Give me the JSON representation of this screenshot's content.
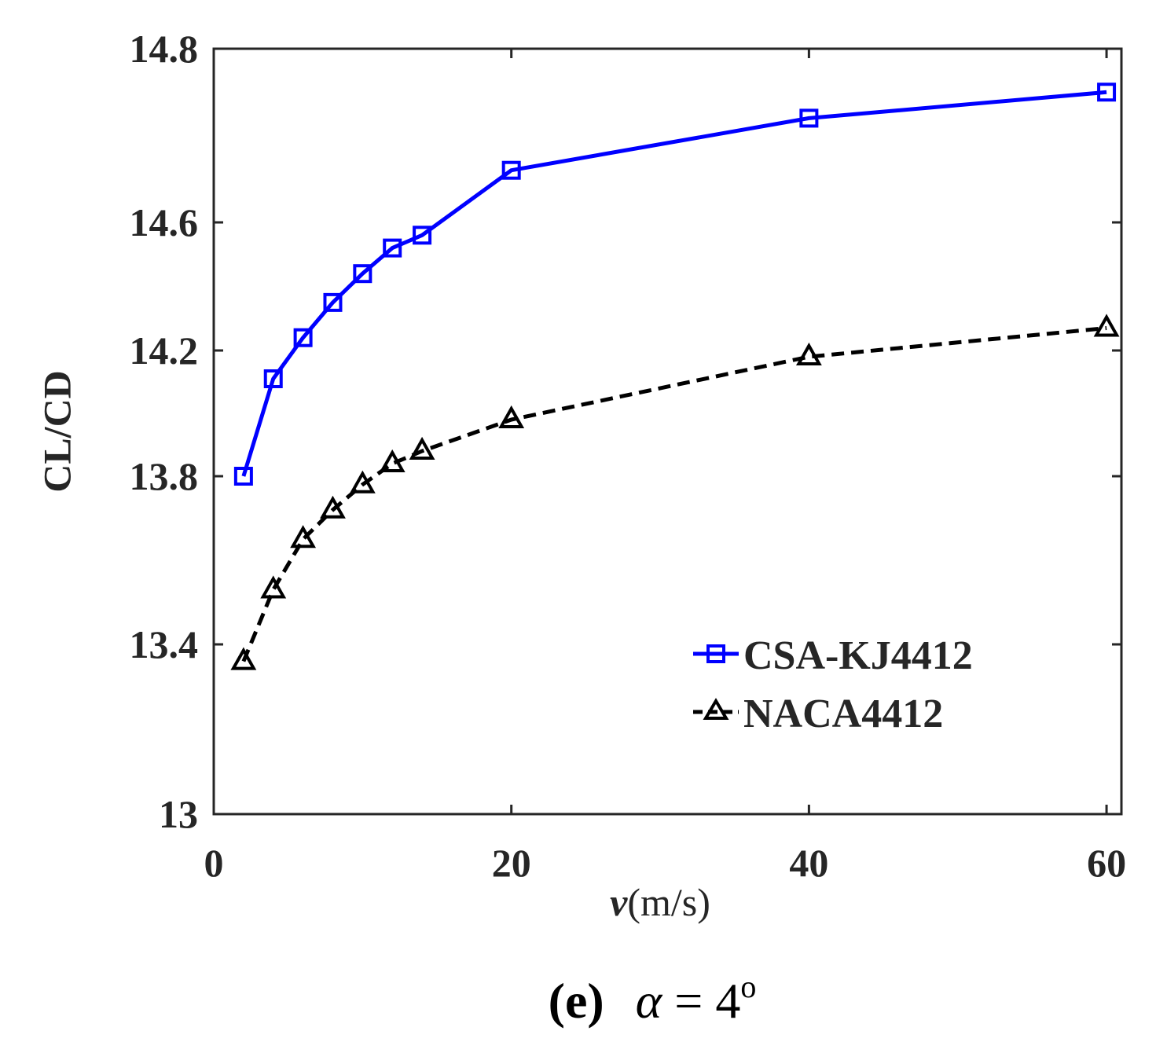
{
  "chart_data": {
    "type": "line",
    "title": "",
    "xlabel_var": "v",
    "xlabel_unit": "(m/s)",
    "ylabel": "CL/CD",
    "xlim": [
      0,
      61
    ],
    "ylim": [
      13,
      14.8
    ],
    "y_scale": "piecewise-linear",
    "x_ticks": [
      "0",
      "20",
      "40",
      "60"
    ],
    "x_tick_values": [
      0,
      20,
      40,
      60
    ],
    "y_ticks": [
      "13",
      "13.4",
      "13.8",
      "14.2",
      "14.6",
      "14.8"
    ],
    "y_tick_values": [
      13,
      13.4,
      13.8,
      14.2,
      14.6,
      14.8
    ],
    "grid": false,
    "legend_position": "lower-right",
    "series": [
      {
        "name": "CSA-KJ4412",
        "color": "#0000ff",
        "line_style": "solid",
        "marker": "square",
        "x": [
          2,
          4,
          6,
          8,
          10,
          12,
          14,
          20,
          40,
          60
        ],
        "y": [
          13.8,
          14.11,
          14.24,
          14.35,
          14.44,
          14.52,
          14.56,
          14.66,
          14.72,
          14.75
        ]
      },
      {
        "name": "NACA4412",
        "color": "#000000",
        "line_style": "dashed",
        "marker": "triangle",
        "x": [
          2,
          4,
          6,
          8,
          10,
          12,
          14,
          20,
          40,
          60
        ],
        "y": [
          13.36,
          13.53,
          13.65,
          13.72,
          13.78,
          13.84,
          13.88,
          13.98,
          14.18,
          14.27
        ]
      }
    ],
    "caption": {
      "label": "(e)",
      "formula_var": "α",
      "formula_rest": " = 4",
      "formula_sup": "o"
    }
  }
}
